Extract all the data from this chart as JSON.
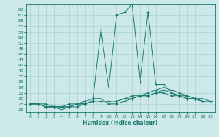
{
  "xlabel": "Humidex (Indice chaleur)",
  "ylabel": "",
  "background_color": "#cce8e8",
  "grid_color": "#aad0d0",
  "line_color": "#1a7a6e",
  "xlim": [
    -0.5,
    23.5
  ],
  "ylim": [
    25,
    64
  ],
  "yticks": [
    26,
    28,
    30,
    32,
    34,
    36,
    38,
    40,
    42,
    44,
    46,
    48,
    50,
    52,
    54,
    56,
    58,
    60,
    62
  ],
  "xticks": [
    0,
    1,
    2,
    3,
    4,
    5,
    6,
    7,
    8,
    9,
    10,
    11,
    12,
    13,
    14,
    15,
    16,
    17,
    18,
    19,
    20,
    21,
    22,
    23
  ],
  "series": [
    [
      28,
      28,
      28,
      27,
      26,
      27,
      27,
      28,
      29,
      55,
      34,
      60,
      61,
      64,
      36,
      61,
      35,
      35,
      32,
      31,
      31,
      30,
      29,
      29
    ],
    [
      28,
      28,
      27,
      27,
      27,
      28,
      28,
      29,
      30,
      30,
      28,
      28,
      29,
      30,
      31,
      31,
      32,
      32,
      31,
      31,
      30,
      30,
      29,
      29
    ],
    [
      28,
      28,
      27,
      27,
      27,
      27,
      28,
      28,
      29,
      29,
      29,
      29,
      30,
      31,
      31,
      32,
      33,
      34,
      33,
      32,
      31,
      30,
      30,
      29
    ],
    [
      28,
      28,
      27,
      27,
      27,
      27,
      28,
      28,
      29,
      29,
      29,
      29,
      30,
      30,
      31,
      31,
      32,
      33,
      32,
      31,
      30,
      30,
      29,
      29
    ]
  ],
  "line_styles": [
    "-",
    "-",
    "-",
    "-"
  ],
  "markers": [
    "+",
    "+",
    "+",
    "+"
  ],
  "marker_sizes": [
    3,
    3,
    3,
    3
  ],
  "linewidths": [
    0.7,
    0.7,
    0.7,
    0.7
  ]
}
